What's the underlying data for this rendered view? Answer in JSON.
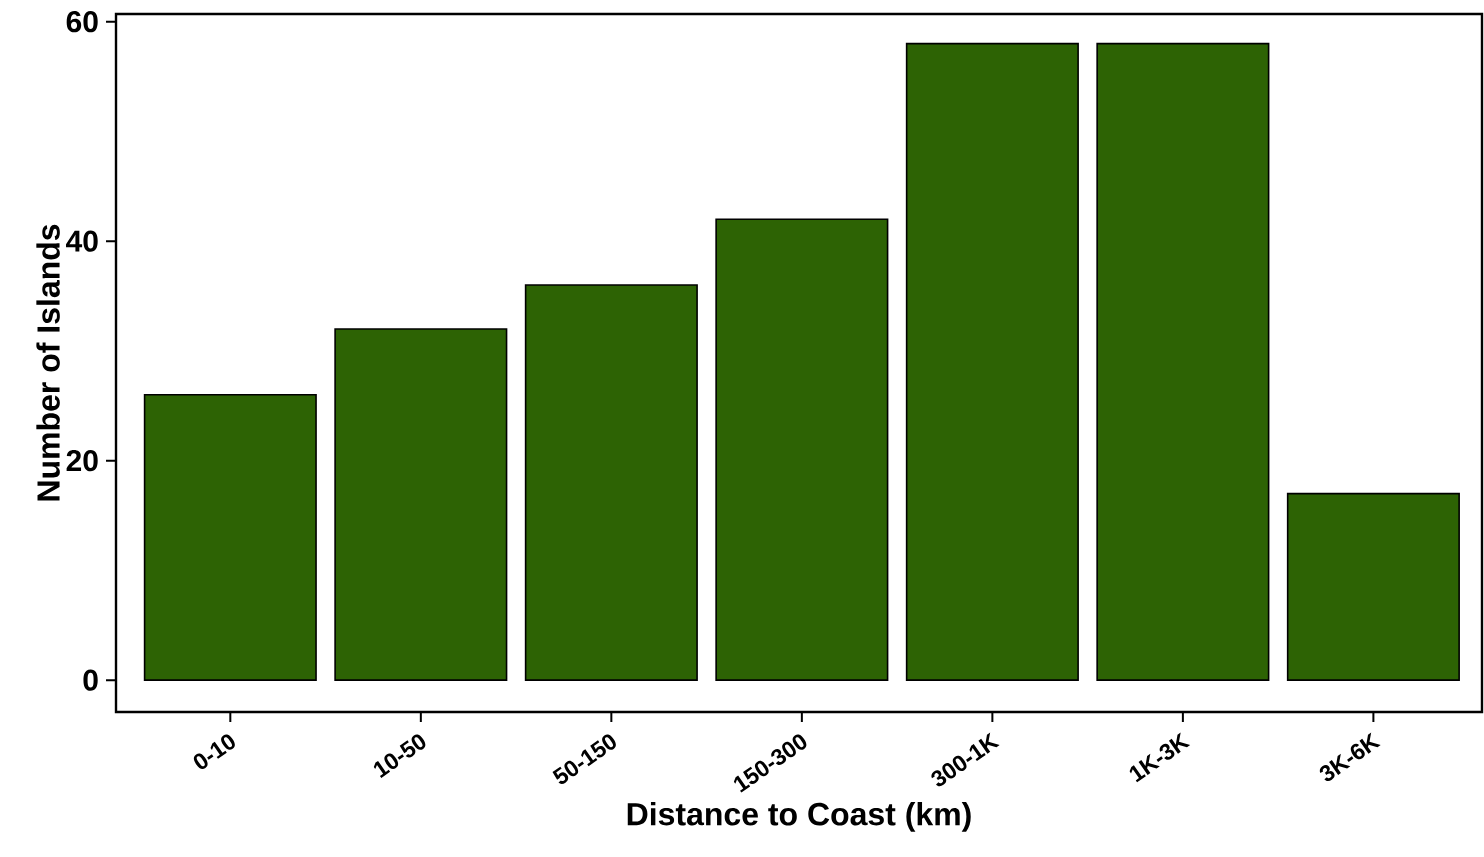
{
  "chart_data": {
    "type": "bar",
    "categories": [
      "0-10",
      "10-50",
      "50-150",
      "150-300",
      "300-1K",
      "1K-3K",
      "3K-6K"
    ],
    "values": [
      26,
      32,
      36,
      42,
      58,
      58,
      17
    ],
    "color": "#2d6304",
    "xlabel": "Distance to Coast (km)",
    "ylabel": "Number of Islands",
    "ylim": [
      -2.9,
      60.7
    ],
    "yticks": [
      0,
      20,
      40,
      60
    ]
  }
}
